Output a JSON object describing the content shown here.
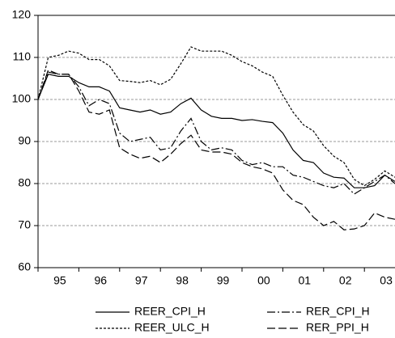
{
  "chart_data": {
    "type": "line",
    "categories": [
      "95",
      null,
      null,
      null,
      "96",
      null,
      null,
      null,
      "97",
      null,
      null,
      null,
      "98",
      null,
      null,
      null,
      "99",
      null,
      null,
      null,
      "00",
      null,
      null,
      null,
      "01",
      null,
      null,
      null,
      "02",
      null,
      null,
      null,
      "03",
      null,
      null,
      null
    ],
    "series": [
      {
        "name": "REER_CPI_H",
        "color": "#000000",
        "dash": "none",
        "values": [
          100,
          106,
          105.5,
          105.5,
          104,
          103,
          103,
          102,
          98,
          97.5,
          97,
          97.5,
          96.5,
          97,
          99,
          100.3,
          97.5,
          96,
          95.5,
          95.5,
          95,
          95.2,
          94.8,
          94.5,
          92,
          88,
          85.5,
          85,
          82.5,
          81.5,
          81.3,
          79,
          79,
          79.5,
          82,
          80.5
        ]
      },
      {
        "name": "RER_CPI_H",
        "color": "#000000",
        "dash": "10,3,2,3",
        "values": [
          100,
          106.5,
          106,
          106,
          103,
          98.5,
          100,
          99,
          92,
          90,
          90.5,
          91,
          88,
          88.5,
          92.5,
          95.5,
          90,
          88,
          88.5,
          88,
          85.5,
          84.5,
          85,
          84,
          84,
          82,
          81.5,
          80.5,
          79.5,
          79,
          80,
          77.5,
          79,
          80.5,
          82,
          80
        ]
      },
      {
        "name": "REER_ULC_H",
        "color": "#000000",
        "dash": "3,2",
        "values": [
          100,
          110,
          110.5,
          111.5,
          111,
          109.5,
          109.5,
          108,
          104.5,
          104.3,
          104,
          104.5,
          103.5,
          104.8,
          108.5,
          112.5,
          111.5,
          111.5,
          111.5,
          110.5,
          109,
          108,
          106.5,
          105.5,
          101,
          97,
          94,
          92.5,
          89,
          86.5,
          85,
          81,
          79.5,
          81,
          83,
          81.5
        ]
      },
      {
        "name": "RER_PPI_H",
        "color": "#000000",
        "dash": "10,4",
        "values": [
          100,
          107,
          106,
          106,
          102,
          97,
          96.5,
          97.5,
          88.5,
          87,
          86,
          86.5,
          85,
          87,
          89.5,
          91.5,
          88,
          87.5,
          87.5,
          87,
          85,
          84,
          83.5,
          82.5,
          78.5,
          76,
          75,
          72,
          70,
          71,
          69,
          69.2,
          70,
          73,
          72,
          71.5
        ]
      }
    ],
    "ylim": [
      60,
      120
    ],
    "yticks": [
      60,
      70,
      80,
      90,
      100,
      110,
      120
    ],
    "grid": true
  }
}
